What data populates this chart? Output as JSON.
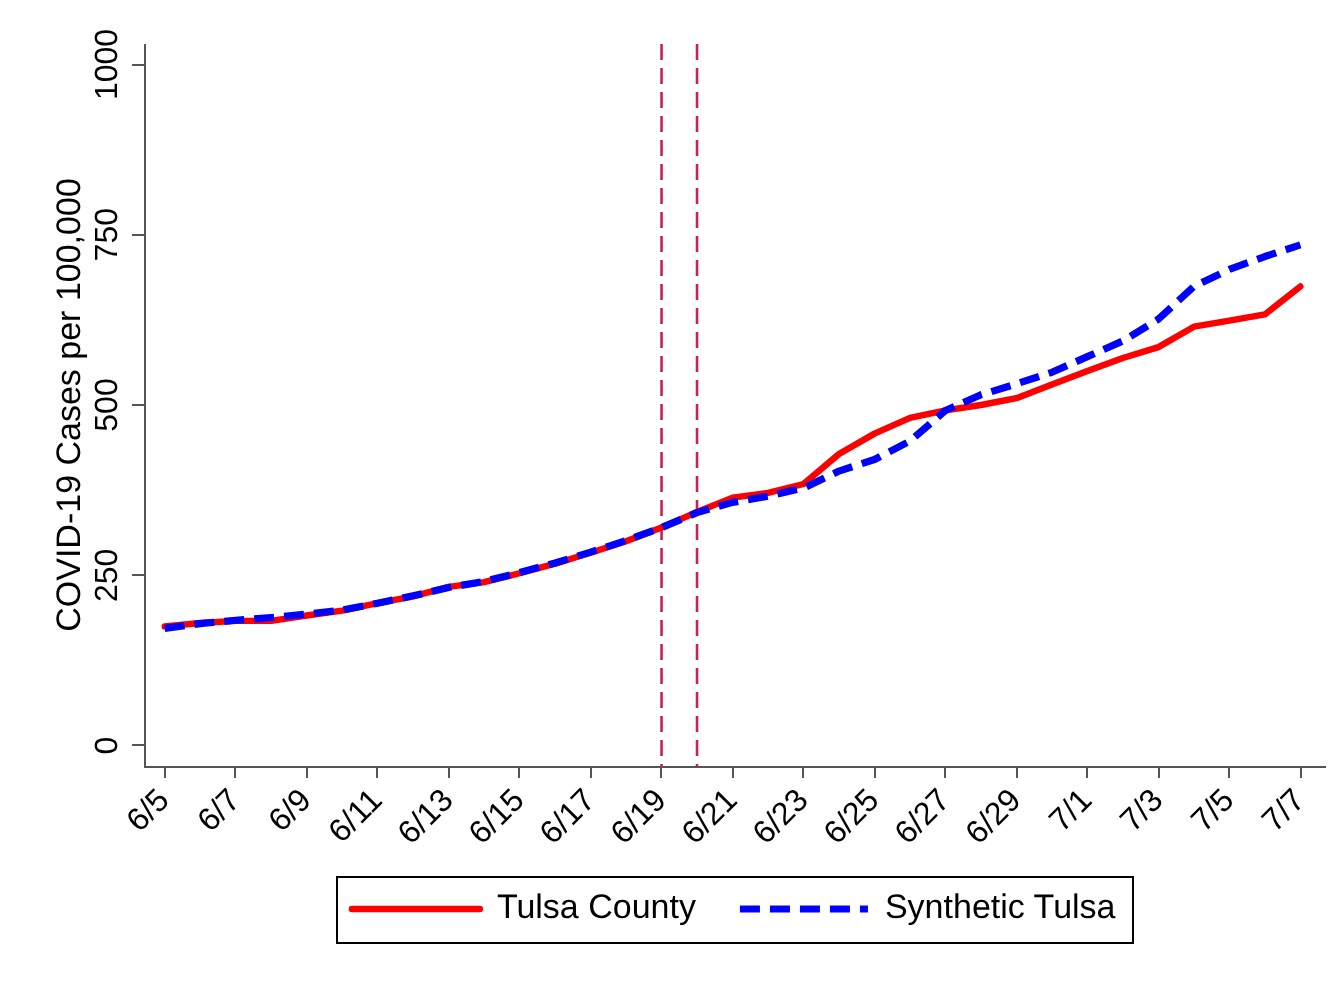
{
  "chart_data": {
    "type": "line",
    "ylabel": "COVID-19 Cases per 100,000",
    "x": [
      "--06-05",
      "--06-06",
      "--06-07",
      "--06-08",
      "--06-09",
      "--06-10",
      "--06-11",
      "--06-12",
      "--06-13",
      "--06-14",
      "--06-15",
      "--06-16",
      "--06-17",
      "--06-18",
      "--06-19",
      "--06-20",
      "--06-21",
      "--06-22",
      "--06-23",
      "--06-24",
      "--06-25",
      "--06-26",
      "--06-27",
      "--06-28",
      "--06-29",
      "--06-30",
      "--07-01",
      "--07-02",
      "--07-03",
      "--07-04",
      "--07-05",
      "--07-06",
      "--07-07"
    ],
    "series": [
      {
        "name": "Tulsa County",
        "color": "#ff0000",
        "line_style": "solid",
        "values": [
          175,
          180,
          183,
          183,
          191,
          198,
          209,
          219,
          233,
          240,
          253,
          267,
          283,
          300,
          320,
          343,
          364,
          371,
          384,
          428,
          458,
          481,
          492,
          500,
          510,
          530,
          550,
          569,
          585,
          615,
          624,
          633,
          674
        ]
      },
      {
        "name": "Synthetic Tulsa",
        "color": "#0000ff",
        "line_style": "dashed",
        "values": [
          172,
          179,
          184,
          188,
          193,
          199,
          209,
          220,
          232,
          241,
          254,
          268,
          284,
          301,
          320,
          342,
          357,
          366,
          378,
          403,
          420,
          447,
          492,
          515,
          531,
          548,
          571,
          594,
          626,
          674,
          699,
          718,
          735
        ]
      }
    ],
    "xlim": [
      "--06-04T10:00",
      "--07-07T16:00"
    ],
    "xticks": [
      {
        "value": "--06-05",
        "label": "6/5"
      },
      {
        "value": "--06-07",
        "label": "6/7"
      },
      {
        "value": "--06-09",
        "label": "6/9"
      },
      {
        "value": "--06-11",
        "label": "6/11"
      },
      {
        "value": "--06-13",
        "label": "6/13"
      },
      {
        "value": "--06-15",
        "label": "6/15"
      },
      {
        "value": "--06-17",
        "label": "6/17"
      },
      {
        "value": "--06-19",
        "label": "6/19"
      },
      {
        "value": "--06-21",
        "label": "6/21"
      },
      {
        "value": "--06-23",
        "label": "6/23"
      },
      {
        "value": "--06-25",
        "label": "6/25"
      },
      {
        "value": "--06-27",
        "label": "6/27"
      },
      {
        "value": "--06-29",
        "label": "6/29"
      },
      {
        "value": "--07-01",
        "label": "7/1"
      },
      {
        "value": "--07-03",
        "label": "7/3"
      },
      {
        "value": "--07-05",
        "label": "7/5"
      },
      {
        "value": "--07-07",
        "label": "7/7"
      }
    ],
    "ylim": [
      -30,
      1030
    ],
    "yticks": [
      0,
      250,
      500,
      750,
      1000
    ],
    "ref_lines": [
      {
        "axis": "x",
        "value": "--06-19",
        "color": "#c42454",
        "line_style": "dashed"
      },
      {
        "axis": "x",
        "value": "--06-20",
        "color": "#c42454",
        "line_style": "dashed"
      }
    ],
    "legend": "bottom"
  }
}
